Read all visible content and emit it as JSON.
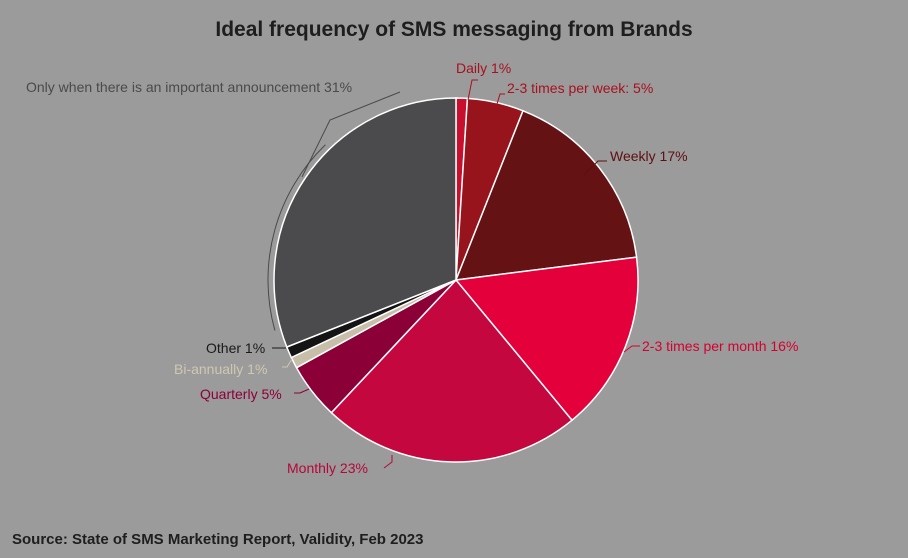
{
  "chart_data": {
    "type": "pie",
    "title": "Ideal frequency of SMS messaging from Brands",
    "source": "Source: State of SMS Marketing Report, Validity, Feb 2023",
    "slices": [
      {
        "label": "Daily 1%",
        "value": 1,
        "color": "#c8102e",
        "label_color": "#a5121f"
      },
      {
        "label": "2-3 times per week: 5%",
        "value": 5,
        "color": "#97141c",
        "label_color": "#a5121f"
      },
      {
        "label": "Weekly 17%",
        "value": 17,
        "color": "#641214",
        "label_color": "#5e0f12"
      },
      {
        "label": "2-3 times per month 16%",
        "value": 16,
        "color": "#e4003a",
        "label_color": "#d6002e"
      },
      {
        "label": "Monthly 23%",
        "value": 23,
        "color": "#c4073e",
        "label_color": "#b5073a"
      },
      {
        "label": "Quarterly 5%",
        "value": 5,
        "color": "#8c0038",
        "label_color": "#8c0038"
      },
      {
        "label": "Bi-annually 1%",
        "value": 1,
        "color": "#c7bfa9",
        "label_color": "#cfc7b0"
      },
      {
        "label": "Other 1%",
        "value": 1,
        "color": "#141414",
        "label_color": "#1a1a1a"
      },
      {
        "label": "Only when there is an important announcement 31%",
        "value": 31,
        "color": "#4b4b4d",
        "label_color": "#4a4a4a"
      }
    ]
  }
}
